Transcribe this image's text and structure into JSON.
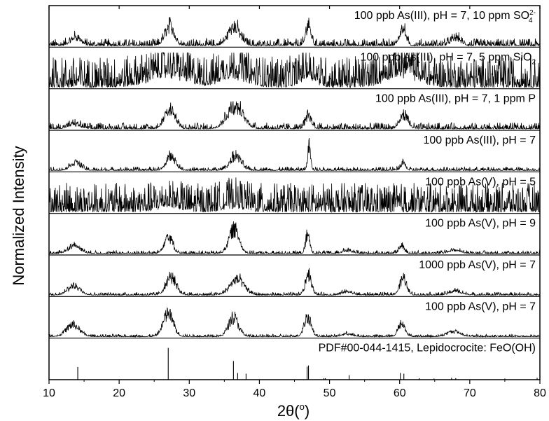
{
  "chart_data": {
    "type": "line",
    "xlabel_main": "2θ(",
    "xlabel_sup": "o",
    "xlabel_close": ")",
    "ylabel": "Normalized Intensity",
    "xlim": [
      10,
      80
    ],
    "x_ticks": [
      10,
      20,
      30,
      40,
      50,
      60,
      70,
      80
    ],
    "grid": false,
    "panels": [
      {
        "label": "100 ppb As(III), pH = 7, 10 ppm SO",
        "label_sub": "4",
        "label_sup": "2-",
        "pattern": "xrd",
        "peaks": [
          [
            13.8,
            0.3
          ],
          [
            27.2,
            0.75
          ],
          [
            36.4,
            0.7
          ],
          [
            47.0,
            0.85
          ],
          [
            60.4,
            0.7
          ],
          [
            68.0,
            0.25
          ]
        ],
        "noise": 0.35,
        "widths": [
          1.0,
          0.9,
          1.2,
          0.5,
          0.6,
          1.0
        ]
      },
      {
        "label": "100 ppb As(III), pH = 7, 5 ppm SiO",
        "label_sub": "2",
        "label_sup": "",
        "pattern": "noisy",
        "peaks": [
          [
            26.9,
            0.5
          ],
          [
            36.4,
            0.45
          ],
          [
            47.0,
            0.4
          ],
          [
            60.4,
            0.55
          ]
        ],
        "noise": 0.9,
        "widths": [
          3.5,
          2.5,
          1.5,
          3.0
        ]
      },
      {
        "label": "100 ppb As(III), pH = 7, 1 ppm P",
        "label_sub": "",
        "label_sup": "",
        "pattern": "xrd",
        "peaks": [
          [
            13.6,
            0.15
          ],
          [
            27.2,
            0.8
          ],
          [
            36.5,
            0.85
          ],
          [
            47.0,
            0.5
          ],
          [
            60.6,
            0.5
          ]
        ],
        "noise": 0.3,
        "widths": [
          1.2,
          1.0,
          1.6,
          0.6,
          0.8
        ]
      },
      {
        "label": "100 ppb As(III), pH = 7",
        "label_sub": "",
        "label_sup": "",
        "pattern": "xrd",
        "peaks": [
          [
            13.8,
            0.3
          ],
          [
            27.4,
            0.55
          ],
          [
            36.6,
            0.55
          ],
          [
            47.1,
            0.95
          ],
          [
            60.5,
            0.3
          ]
        ],
        "noise": 0.18,
        "widths": [
          1.0,
          0.9,
          1.1,
          0.3,
          0.5
        ]
      },
      {
        "label": "100 ppb As(V), pH = 5",
        "label_sub": "",
        "label_sup": "",
        "pattern": "noisy",
        "peaks": [
          [
            27.0,
            0.2
          ],
          [
            36.4,
            0.2
          ]
        ],
        "noise": 0.85,
        "widths": [
          2.0,
          2.0
        ]
      },
      {
        "label": "100 ppb As(V), pH = 9",
        "label_sub": "",
        "label_sup": "",
        "pattern": "xrd",
        "peaks": [
          [
            13.6,
            0.3
          ],
          [
            27.0,
            0.7
          ],
          [
            36.4,
            0.95
          ],
          [
            46.9,
            0.75
          ],
          [
            52.5,
            0.1
          ],
          [
            60.3,
            0.3
          ],
          [
            67.8,
            0.12
          ]
        ],
        "noise": 0.15,
        "widths": [
          1.2,
          0.8,
          1.0,
          0.4,
          1.0,
          0.5,
          1.2
        ]
      },
      {
        "label": "1000 ppb As(V), pH = 7",
        "label_sub": "",
        "label_sup": "",
        "pattern": "xrd",
        "peaks": [
          [
            13.6,
            0.35
          ],
          [
            27.4,
            0.7
          ],
          [
            36.8,
            0.6
          ],
          [
            47.0,
            0.85
          ],
          [
            52.5,
            0.12
          ],
          [
            60.5,
            0.65
          ],
          [
            68.0,
            0.15
          ]
        ],
        "noise": 0.15,
        "widths": [
          1.2,
          1.0,
          1.4,
          0.6,
          1.0,
          0.7,
          1.2
        ]
      },
      {
        "label": "100 ppb As(V), pH = 7",
        "label_sub": "",
        "label_sup": "",
        "pattern": "xrd",
        "peaks": [
          [
            13.4,
            0.45
          ],
          [
            27.0,
            0.9
          ],
          [
            36.3,
            0.75
          ],
          [
            46.9,
            0.8
          ],
          [
            52.5,
            0.1
          ],
          [
            60.3,
            0.5
          ],
          [
            67.7,
            0.2
          ]
        ],
        "noise": 0.12,
        "widths": [
          1.3,
          1.0,
          1.0,
          0.7,
          1.0,
          0.7,
          1.3
        ]
      }
    ],
    "reference": {
      "label": "PDF#00-044-1415, Lepidocrocite: FeO(OH)",
      "lines": [
        [
          14.1,
          0.34
        ],
        [
          27.0,
          0.85
        ],
        [
          36.3,
          0.5
        ],
        [
          36.9,
          0.18
        ],
        [
          38.1,
          0.16
        ],
        [
          46.8,
          0.35
        ],
        [
          47.0,
          0.38
        ],
        [
          49.2,
          0.04
        ],
        [
          49.4,
          0.04
        ],
        [
          52.8,
          0.12
        ],
        [
          60.1,
          0.18
        ],
        [
          60.6,
          0.16
        ],
        [
          62.8,
          0.04
        ],
        [
          64.9,
          0.03
        ],
        [
          67.4,
          0.05
        ],
        [
          68.0,
          0.04
        ],
        [
          75.0,
          0.03
        ],
        [
          79.6,
          0.05
        ]
      ]
    }
  }
}
